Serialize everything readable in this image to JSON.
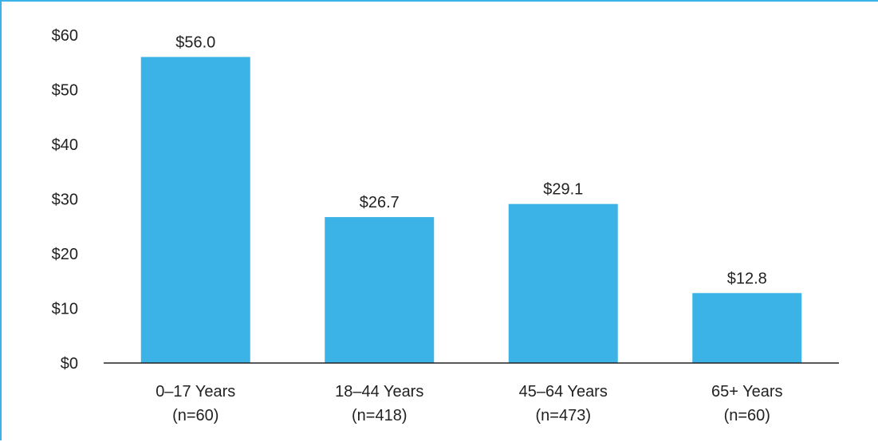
{
  "chart_data": {
    "type": "bar",
    "categories": [
      {
        "line1": "0–17 Years",
        "line2": "(n=60)"
      },
      {
        "line1": "18–44 Years",
        "line2": "(n=418)"
      },
      {
        "line1": "45–64 Years",
        "line2": "(n=473)"
      },
      {
        "line1": "65+ Years",
        "line2": "(n=60)"
      }
    ],
    "values": [
      56.0,
      26.7,
      29.1,
      12.8
    ],
    "data_labels": [
      "$56.0",
      "$26.7",
      "$29.1",
      "$12.8"
    ],
    "yticks": [
      {
        "value": 0,
        "label": "$0"
      },
      {
        "value": 10,
        "label": "$10"
      },
      {
        "value": 20,
        "label": "$20"
      },
      {
        "value": 30,
        "label": "$30"
      },
      {
        "value": 40,
        "label": "$40"
      },
      {
        "value": 50,
        "label": "$50"
      },
      {
        "value": 60,
        "label": "$60"
      }
    ],
    "ylim": [
      0,
      60
    ],
    "grid": false,
    "bar_color": "#3bb3e6",
    "axis_color": "#222222",
    "frame_color": "#3bb3e6"
  }
}
